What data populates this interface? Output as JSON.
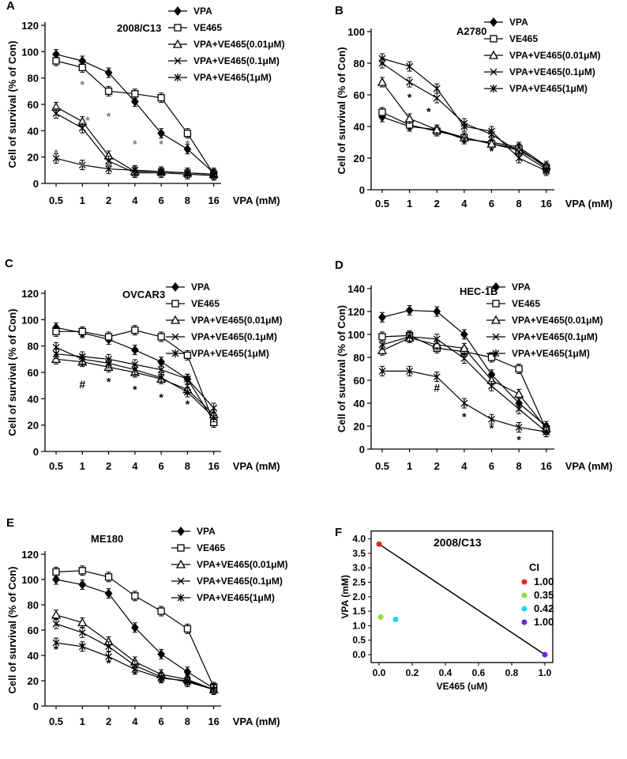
{
  "figure": {
    "description_free": true
  },
  "colors": {
    "axis": "#000000",
    "series_line": "#000000",
    "ci_red": "#e8271c",
    "ci_green": "#8fe13a",
    "ci_cyan": "#22d6ea",
    "ci_purple": "#6d2ad4",
    "asterisk": "#7a7a7a"
  },
  "chart_data": [
    {
      "panel": "A",
      "type": "line",
      "title": "2008/C13",
      "ylabel": "Cell of survival (% of Con)",
      "xlabel": "VPA (mM)",
      "categories": [
        "0.5",
        "1",
        "2",
        "4",
        "6",
        "8",
        "16"
      ],
      "ylim": [
        0,
        120
      ],
      "yticks": [
        0,
        20,
        40,
        60,
        80,
        100,
        120
      ],
      "series": [
        {
          "name": "VPA",
          "marker": "diamond",
          "values": [
            98,
            93,
            84,
            62,
            38,
            26,
            8
          ]
        },
        {
          "name": "VE465",
          "marker": "square",
          "values": [
            93,
            88,
            70,
            68,
            65,
            38,
            7
          ]
        },
        {
          "name": "VPA+VE465(0.01μM)",
          "marker": "triangle",
          "values": [
            58,
            47,
            21,
            9,
            9,
            8,
            7
          ]
        },
        {
          "name": "VPA+VE465(0.1μM)",
          "marker": "x",
          "values": [
            53,
            42,
            17,
            8,
            8,
            7,
            6
          ]
        },
        {
          "name": "VPA+VE465(1μM)",
          "marker": "star",
          "values": [
            19,
            14,
            11,
            10,
            9,
            8,
            7
          ]
        }
      ],
      "annotations": [
        {
          "text": "*",
          "x_index": 1,
          "y": 72
        },
        {
          "text": "*",
          "x_index": 2,
          "y": 48
        },
        {
          "text": "*",
          "x_index": 1.2,
          "y": 45
        },
        {
          "text": "*",
          "x_index": 3,
          "y": 27
        },
        {
          "text": "*",
          "x_index": 4,
          "y": 27
        },
        {
          "text": "*",
          "x_index": 5,
          "y": 27
        },
        {
          "text": "*",
          "x_index": 0,
          "y": 20
        },
        {
          "text": "*",
          "x_index": 1,
          "y": 10
        },
        {
          "text": "*",
          "x_index": 2,
          "y": 10
        }
      ]
    },
    {
      "panel": "B",
      "type": "line",
      "title": "A2780",
      "ylabel": "Cell of survival (% of Con)",
      "xlabel": "VPA (mM)",
      "categories": [
        "0.5",
        "1",
        "2",
        "4",
        "6",
        "8",
        "16"
      ],
      "ylim": [
        0,
        100
      ],
      "yticks": [
        0,
        20,
        40,
        60,
        80,
        100
      ],
      "series": [
        {
          "name": "VPA",
          "marker": "diamond",
          "values": [
            46,
            40,
            38,
            32,
            30,
            27,
            15
          ]
        },
        {
          "name": "VE465",
          "marker": "square",
          "values": [
            49,
            41,
            37,
            33,
            29,
            26,
            14
          ]
        },
        {
          "name": "VPA+VE465(0.01μM)",
          "marker": "triangle",
          "values": [
            68,
            45,
            38,
            33,
            29,
            25,
            15
          ]
        },
        {
          "name": "VPA+VE465(0.1μM)",
          "marker": "x",
          "values": [
            80,
            68,
            58,
            42,
            35,
            24,
            13
          ]
        },
        {
          "name": "VPA+VE465(1μM)",
          "marker": "star",
          "values": [
            83,
            78,
            64,
            40,
            37,
            20,
            12
          ]
        }
      ],
      "annotations": [
        {
          "text": "*",
          "x_index": 1,
          "y": 56
        },
        {
          "text": "*",
          "x_index": 1.7,
          "y": 47
        },
        {
          "text": "*",
          "x_index": 3,
          "y": 29
        },
        {
          "text": "*",
          "x_index": 4,
          "y": 22
        }
      ]
    },
    {
      "panel": "C",
      "type": "line",
      "title": "OVCAR3",
      "ylabel": "Cell of survival (% of Con)",
      "xlabel": "VPA (mM)",
      "categories": [
        "0.5",
        "1",
        "2",
        "4",
        "6",
        "8",
        "16"
      ],
      "ylim": [
        0,
        120
      ],
      "yticks": [
        0,
        20,
        40,
        60,
        80,
        100,
        120
      ],
      "series": [
        {
          "name": "VPA",
          "marker": "diamond",
          "values": [
            94,
            90,
            85,
            77,
            68,
            55,
            23
          ]
        },
        {
          "name": "VE465",
          "marker": "square",
          "values": [
            91,
            91,
            87,
            92,
            87,
            73,
            22
          ]
        },
        {
          "name": "VPA+VE465(0.01μM)",
          "marker": "triangle",
          "values": [
            70,
            68,
            64,
            60,
            55,
            47,
            28
          ]
        },
        {
          "name": "VPA+VE465(0.1μM)",
          "marker": "x",
          "values": [
            74,
            72,
            70,
            66,
            62,
            55,
            33
          ]
        },
        {
          "name": "VPA+VE465(1μM)",
          "marker": "star",
          "values": [
            79,
            70,
            67,
            62,
            56,
            45,
            26
          ]
        }
      ],
      "annotations": [
        {
          "text": "#",
          "x_index": 1,
          "y": 48
        },
        {
          "text": "*",
          "x_index": 2,
          "y": 50
        },
        {
          "text": "*",
          "x_index": 3,
          "y": 44
        },
        {
          "text": "*",
          "x_index": 4,
          "y": 38
        },
        {
          "text": "*",
          "x_index": 5,
          "y": 33
        }
      ]
    },
    {
      "panel": "D",
      "type": "line",
      "title": "HEC-1B",
      "ylabel": "Cell of survival (% of Con)",
      "xlabel": "VPA (mM)",
      "categories": [
        "0.5",
        "1",
        "2",
        "4",
        "6",
        "8",
        "16"
      ],
      "ylim": [
        0,
        140
      ],
      "yticks": [
        0,
        20,
        40,
        60,
        80,
        100,
        120,
        140
      ],
      "series": [
        {
          "name": "VPA",
          "marker": "diamond",
          "values": [
            115,
            121,
            120,
            100,
            65,
            40,
            20
          ]
        },
        {
          "name": "VE465",
          "marker": "square",
          "values": [
            98,
            99,
            88,
            85,
            80,
            70,
            17
          ]
        },
        {
          "name": "VPA+VE465(0.01μM)",
          "marker": "triangle",
          "values": [
            86,
            97,
            91,
            88,
            60,
            48,
            18
          ]
        },
        {
          "name": "VPA+VE465(0.1μM)",
          "marker": "x",
          "values": [
            91,
            98,
            96,
            79,
            55,
            35,
            15
          ]
        },
        {
          "name": "VPA+VE465(1μM)",
          "marker": "star",
          "values": [
            68,
            68,
            63,
            40,
            26,
            19,
            15
          ]
        }
      ],
      "annotations": [
        {
          "text": "#",
          "x_index": 2,
          "y": 50
        },
        {
          "text": "*",
          "x_index": 3,
          "y": 25
        },
        {
          "text": "*",
          "x_index": 4,
          "y": 15
        },
        {
          "text": "*",
          "x_index": 5,
          "y": 5
        }
      ]
    },
    {
      "panel": "E",
      "type": "line",
      "title": "ME180",
      "ylabel": "Cell of survival (% of Con)",
      "xlabel": "VPA (mM)",
      "categories": [
        "0.5",
        "1",
        "2",
        "4",
        "6",
        "8",
        "16"
      ],
      "ylim": [
        0,
        120
      ],
      "yticks": [
        0,
        20,
        40,
        60,
        80,
        100,
        120
      ],
      "series": [
        {
          "name": "VPA",
          "marker": "diamond",
          "values": [
            100,
            96,
            89,
            62,
            41,
            27,
            14
          ]
        },
        {
          "name": "VE465",
          "marker": "square",
          "values": [
            106,
            107,
            102,
            87,
            75,
            61,
            15
          ]
        },
        {
          "name": "VPA+VE465(0.01μM)",
          "marker": "triangle",
          "values": [
            72,
            66,
            51,
            35,
            25,
            21,
            13
          ]
        },
        {
          "name": "VPA+VE465(0.1μM)",
          "marker": "x",
          "values": [
            65,
            58,
            47,
            32,
            23,
            19,
            13
          ]
        },
        {
          "name": "VPA+VE465(1μM)",
          "marker": "star",
          "values": [
            50,
            47,
            39,
            29,
            22,
            20,
            13
          ]
        }
      ],
      "annotations": [
        {
          "text": "*",
          "x_index": 0,
          "y": 42
        },
        {
          "text": "*",
          "x_index": 1,
          "y": 44
        },
        {
          "text": "*",
          "x_index": 2,
          "y": 31
        },
        {
          "text": "*",
          "x_index": 3,
          "y": 22
        },
        {
          "text": "*",
          "x_index": 4,
          "y": 16
        }
      ]
    },
    {
      "panel": "F",
      "type": "scatter",
      "title": "2008/C13",
      "xlabel": "VE465 (uM)",
      "ylabel": "VPA (mM)",
      "xlim": [
        0,
        1.0
      ],
      "ylim": [
        0,
        4.0
      ],
      "xticks": [
        "0.0",
        "0.2",
        "0.4",
        "0.6",
        "0.8",
        "1.0"
      ],
      "yticks": [
        "0.0",
        "0.5",
        "1.0",
        "1.5",
        "2.0",
        "2.5",
        "3.0",
        "3.5",
        "4.0"
      ],
      "legend_title": "CI",
      "points": [
        {
          "label": "1.00",
          "x": 0.0,
          "y": 3.82,
          "color": "#e8271c"
        },
        {
          "label": "0.35",
          "x": 0.01,
          "y": 1.3,
          "color": "#8fe13a"
        },
        {
          "label": "0.42",
          "x": 0.1,
          "y": 1.22,
          "color": "#22d6ea"
        },
        {
          "label": "1.00",
          "x": 1.0,
          "y": 0.0,
          "color": "#6d2ad4"
        }
      ],
      "line": {
        "from": [
          0.0,
          3.82
        ],
        "to": [
          1.0,
          0.0
        ]
      }
    }
  ]
}
